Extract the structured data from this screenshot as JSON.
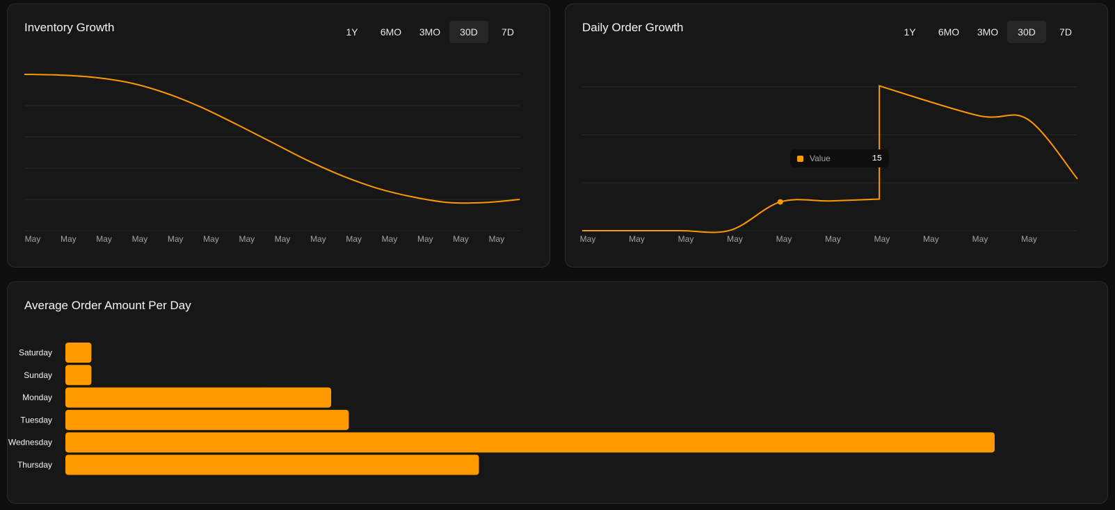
{
  "accent": "#ff9900",
  "range_tabs": [
    "1Y",
    "6MO",
    "3MO",
    "30D",
    "7D"
  ],
  "active_range": "30D",
  "chart_data": [
    {
      "type": "line",
      "title": "Inventory Growth",
      "x": [
        "May",
        "May",
        "May",
        "May",
        "May",
        "May",
        "May",
        "May",
        "May",
        "May",
        "May",
        "May",
        "May",
        "May",
        "May"
      ],
      "series": [
        {
          "values": [
            100,
            99.5,
            98,
            94.5,
            88,
            79,
            68,
            56.5,
            45,
            35,
            27,
            21.5,
            18,
            18,
            20
          ]
        }
      ],
      "ylim": [
        0,
        100
      ],
      "grid": true,
      "curve": "smooth"
    },
    {
      "type": "line",
      "title": "Daily Order Growth",
      "x": [
        "May",
        "May",
        "May",
        "May",
        "May",
        "May",
        "May",
        "May",
        "May",
        "May",
        "May"
      ],
      "series": [
        {
          "values": [
            0,
            0,
            0,
            0.3,
            15,
            15.5,
            16.5,
            75.5,
            60,
            58,
            27
          ]
        }
      ],
      "step_after_index": 6,
      "ylim": [
        0,
        75
      ],
      "grid": true,
      "tooltip": {
        "label": "Value",
        "value": "15",
        "index": 4
      }
    },
    {
      "type": "bar",
      "orientation": "horizontal",
      "title": "Average Order Amount Per Day",
      "categories": [
        "Saturday",
        "Sunday",
        "Monday",
        "Tuesday",
        "Wednesday",
        "Thursday"
      ],
      "values": [
        2.8,
        2.8,
        28.6,
        30.5,
        100,
        44.5
      ],
      "xlim": [
        0,
        100
      ]
    }
  ]
}
